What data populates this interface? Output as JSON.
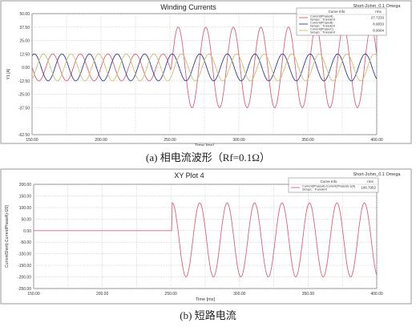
{
  "chart_data": [
    {
      "type": "line",
      "title": "Winding Currents",
      "tag": "Short-2ohm_0.1 Omega",
      "xlabel": "Time [ms]",
      "ylabel": "Y1 [A]",
      "xlim": [
        150,
        400
      ],
      "ylim": [
        -62.5,
        50
      ],
      "xticks": [
        "150.00",
        "200.00",
        "250.00",
        "300.00",
        "350.00",
        "400.00"
      ],
      "yticks": [
        "50.00",
        "37.50",
        "25.00",
        "12.50",
        "0.00",
        "-12.50",
        "-25.00",
        "-37.50",
        "-62.50"
      ],
      "legend": {
        "headers": [
          "Curve Info",
          "rms"
        ],
        "placement": "top-right",
        "rows": [
          {
            "name": "Current(PhaseA)",
            "setup": "Setup1 : Transient",
            "value": "27.7233"
          },
          {
            "name": "Current(PhaseB)",
            "setup": "Setup1 : Transient",
            "value": "8.9833"
          },
          {
            "name": "Current(PhaseC)",
            "setup": "Setup1 : Transient",
            "value": "8.9004"
          }
        ]
      },
      "series": [
        {
          "name": "Current(PhaseA)",
          "color": "#d9627a",
          "amplitude_before": 12.5,
          "amplitude_after": 37.5,
          "period_ms": 20,
          "phase_deg": 0
        },
        {
          "name": "Current(PhaseB)",
          "color": "#2f3c8c",
          "amplitude_before": 12.5,
          "amplitude_after": 12.5,
          "period_ms": 20,
          "phase_deg": -120
        },
        {
          "name": "Current(PhaseC)",
          "color": "#cdbf6a",
          "amplitude_before": 12.5,
          "amplitude_after": 12.5,
          "period_ms": 20,
          "phase_deg": 120
        }
      ],
      "fault_time_ms": 251
    },
    {
      "type": "line",
      "title": "XY Plot 4",
      "tag": "Short-2ohm_0.1 Omega",
      "xlabel": "Time [ms]",
      "ylabel": "CurrentShort(-CurrentPhaseA)-I20]",
      "xlim": [
        150,
        400
      ],
      "ylim": [
        -250,
        200
      ],
      "xticks": [
        "150.00",
        "200.00",
        "250.00",
        "300.00",
        "350.00",
        "400.00"
      ],
      "yticks": [
        "200.00",
        "150.00",
        "100.00",
        "50.00",
        "0.00",
        "-50.00",
        "-100.00",
        "-150.00",
        "-200.00",
        "-250.00"
      ],
      "legend": {
        "headers": [
          "Curve Info",
          "rms"
        ],
        "placement": "top-right",
        "rows": [
          {
            "name": "Current(PhaseA)-Current(Phase8)-1(A)",
            "setup": "Setup1 : Transient",
            "value": "106.7952"
          }
        ]
      },
      "series": [
        {
          "name": "Current(PhaseA)-Current(Phase8)-1(A)",
          "color": "#d9627a",
          "value_before": 0,
          "amplitude_after": 160,
          "offset_after": -40,
          "period_ms": 20,
          "phase_deg": 180
        }
      ],
      "fault_time_ms": 251
    }
  ],
  "captions": {
    "a": "(a)  相电流波形（Rf=0.1Ω）",
    "b": "(b)  短路电流"
  }
}
